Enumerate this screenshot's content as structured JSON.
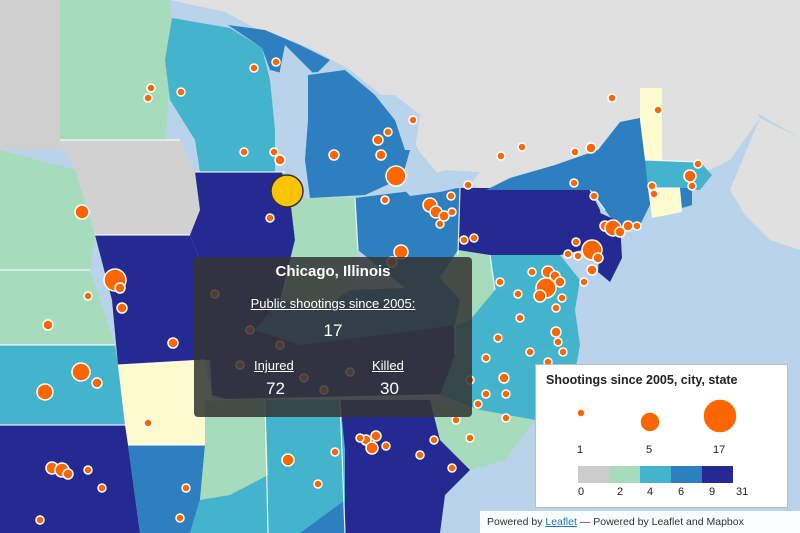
{
  "popup": {
    "title": "Chicago, Illinois",
    "subtitle": "Public shootings since 2005:",
    "total": "17",
    "injured_label": "Injured",
    "injured_value": "72",
    "killed_label": "Killed",
    "killed_value": "30"
  },
  "legend": {
    "title": "Shootings since 2005, city, state",
    "circle_counts": [
      "1",
      "5",
      "17"
    ],
    "bin_breaks": [
      "0",
      "2",
      "4",
      "6",
      "9",
      "31"
    ],
    "bin_colors": [
      "#cccccc",
      "#a6dcbb",
      "#43b4cb",
      "#2d7fc0",
      "#252a92"
    ]
  },
  "attribution": {
    "prefix": "Powered by",
    "link": "Leaflet",
    "suffix": "— Powered by Leaflet and Mapbox"
  },
  "colors": {
    "water": "#b9d3ea",
    "marker_fill": "#ff6600",
    "marker_stroke": "#ffffff",
    "selected_marker": "#ffc400"
  }
}
